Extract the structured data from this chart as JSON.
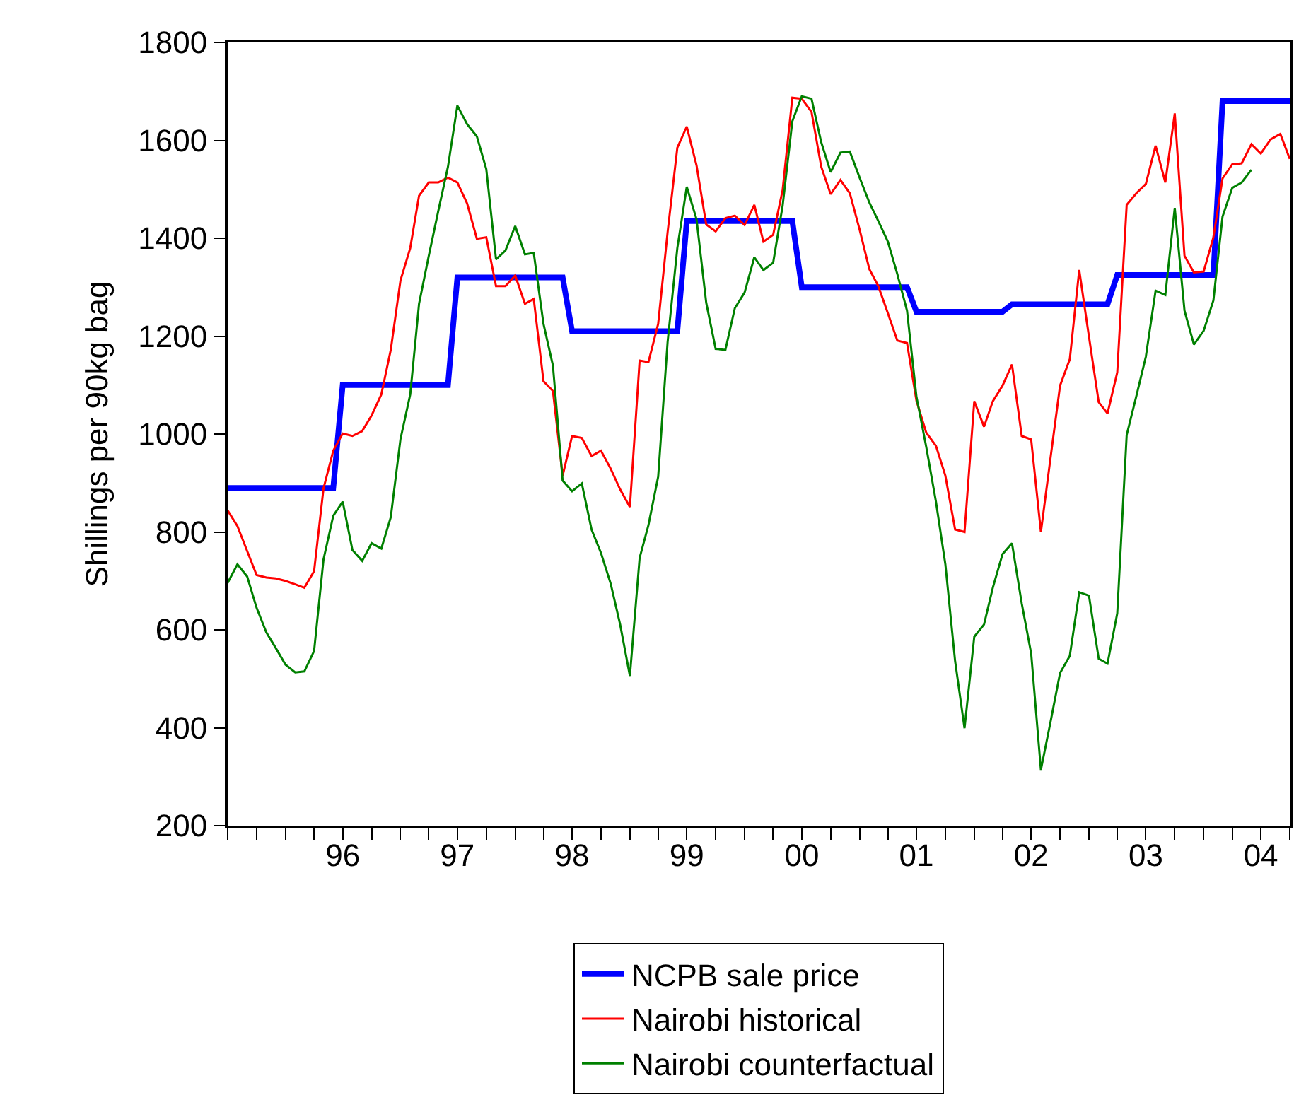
{
  "chart_data": {
    "type": "line",
    "ylabel": "Shillings per 90kg bag",
    "x": [
      "1995-07",
      "1995-08",
      "1995-09",
      "1995-10",
      "1995-11",
      "1995-12",
      "1996-01",
      "1996-02",
      "1996-03",
      "1996-04",
      "1996-05",
      "1996-06",
      "1996-07",
      "1996-08",
      "1996-09",
      "1996-10",
      "1996-11",
      "1996-12",
      "1997-01",
      "1997-02",
      "1997-03",
      "1997-04",
      "1997-05",
      "1997-06",
      "1997-07",
      "1997-08",
      "1997-09",
      "1997-10",
      "1997-11",
      "1997-12",
      "1998-01",
      "1998-02",
      "1998-03",
      "1998-04",
      "1998-05",
      "1998-06",
      "1998-07",
      "1998-08",
      "1998-09",
      "1998-10",
      "1998-11",
      "1998-12",
      "1999-01",
      "1999-02",
      "1999-03",
      "1999-04",
      "1999-05",
      "1999-06",
      "1999-07",
      "1999-08",
      "1999-09",
      "1999-10",
      "1999-11",
      "1999-12",
      "2000-01",
      "2000-02",
      "2000-03",
      "2000-04",
      "2000-05",
      "2000-06",
      "2000-07",
      "2000-08",
      "2000-09",
      "2000-10",
      "2000-11",
      "2000-12",
      "2001-01",
      "2001-02",
      "2001-03",
      "2001-04",
      "2001-05",
      "2001-06",
      "2001-07",
      "2001-08",
      "2001-09",
      "2001-10",
      "2001-11",
      "2001-12",
      "2002-01",
      "2002-02",
      "2002-03",
      "2002-04",
      "2002-05",
      "2002-06",
      "2002-07",
      "2002-08",
      "2002-09",
      "2002-10",
      "2002-11",
      "2002-12",
      "2003-01",
      "2003-02",
      "2003-03",
      "2003-04",
      "2003-05",
      "2003-06",
      "2003-07",
      "2003-08",
      "2003-09",
      "2003-10",
      "2003-11",
      "2003-12",
      "2004-01",
      "2004-02",
      "2004-03",
      "2004-04",
      "2004-05",
      "2004-06",
      "2004-07",
      "2004-08",
      "2004-09",
      "2004-10"
    ],
    "series": [
      {
        "name": "NCPB sale price",
        "color": "#0000ff",
        "values": [
          890,
          890,
          890,
          890,
          890,
          890,
          890,
          890,
          890,
          890,
          890,
          890,
          1100,
          1100,
          1100,
          1100,
          1100,
          1100,
          1100,
          1100,
          1100,
          1100,
          1100,
          1100,
          1320,
          1320,
          1320,
          1320,
          1320,
          1320,
          1320,
          1320,
          1320,
          1320,
          1320,
          1320,
          1210,
          1210,
          1210,
          1210,
          1210,
          1210,
          1210,
          1210,
          1210,
          1210,
          1210,
          1210,
          1435,
          1435,
          1435,
          1435,
          1435,
          1435,
          1435,
          1435,
          1435,
          1435,
          1435,
          1435,
          1300,
          1300,
          1300,
          1300,
          1300,
          1300,
          1300,
          1300,
          1300,
          1300,
          1300,
          1300,
          1250,
          1250,
          1250,
          1250,
          1250,
          1250,
          1250,
          1250,
          1250,
          1250,
          1265,
          1265,
          1265,
          1265,
          1265,
          1265,
          1265,
          1265,
          1265,
          1265,
          1265,
          1325,
          1325,
          1325,
          1325,
          1325,
          1325,
          1325,
          1325,
          1325,
          1325,
          1325,
          1680,
          1680,
          1680,
          1680,
          1680,
          1680,
          1680,
          1680
        ]
      },
      {
        "name": "Nairobi historical",
        "color": "#ff0000",
        "values": [
          844,
          812,
          761,
          712,
          707,
          705,
          700,
          693,
          686,
          720,
          889,
          966,
          1001,
          996,
          1006,
          1038,
          1081,
          1172,
          1314,
          1380,
          1487,
          1514,
          1514,
          1524,
          1514,
          1471,
          1399,
          1402,
          1302,
          1302,
          1324,
          1266,
          1276,
          1108,
          1088,
          915,
          996,
          992,
          955,
          966,
          929,
          887,
          851,
          1150,
          1147,
          1225,
          1412,
          1585,
          1628,
          1549,
          1428,
          1414,
          1441,
          1446,
          1427,
          1468,
          1393,
          1407,
          1498,
          1687,
          1685,
          1658,
          1546,
          1490,
          1519,
          1492,
          1418,
          1337,
          1303,
          1247,
          1191,
          1186,
          1068,
          1003,
          976,
          915,
          805,
          800,
          1067,
          1015,
          1067,
          1099,
          1142,
          996,
          989,
          800,
          953,
          1099,
          1153,
          1335,
          1199,
          1065,
          1042,
          1126,
          1468,
          1492,
          1511,
          1589,
          1514,
          1655,
          1364,
          1330,
          1332,
          1402,
          1522,
          1551,
          1553,
          1592,
          1573,
          1602,
          1613,
          1562
        ]
      },
      {
        "name": "Nairobi counterfactual",
        "color": "#008000",
        "values": [
          696,
          734,
          709,
          645,
          595,
          563,
          529,
          513,
          515,
          557,
          744,
          833,
          862,
          763,
          741,
          777,
          766,
          830,
          990,
          1081,
          1266,
          1364,
          1455,
          1546,
          1671,
          1633,
          1608,
          1541,
          1357,
          1375,
          1425,
          1367,
          1370,
          1225,
          1140,
          905,
          883,
          899,
          805,
          757,
          694,
          611,
          506,
          747,
          814,
          913,
          1188,
          1380,
          1505,
          1439,
          1268,
          1174,
          1172,
          1257,
          1289,
          1361,
          1335,
          1350,
          1466,
          1639,
          1690,
          1685,
          1596,
          1535,
          1575,
          1577,
          1524,
          1473,
          1436,
          1393,
          1327,
          1252,
          1076,
          974,
          862,
          734,
          536,
          399,
          586,
          611,
          686,
          755,
          777,
          654,
          552,
          314,
          413,
          512,
          547,
          677,
          670,
          541,
          531,
          634,
          998,
          1078,
          1158,
          1293,
          1284,
          1462,
          1252,
          1183,
          1211,
          1273,
          1444,
          1503,
          1514,
          1540,
          null,
          null,
          null,
          null
        ]
      }
    ],
    "xlim": [
      "1995-07",
      "2004-10"
    ],
    "xticks": [
      {
        "value": "1996-07",
        "label": "96"
      },
      {
        "value": "1997-07",
        "label": "97"
      },
      {
        "value": "1998-07",
        "label": "98"
      },
      {
        "value": "1999-07",
        "label": "99"
      },
      {
        "value": "2000-07",
        "label": "00"
      },
      {
        "value": "2001-07",
        "label": "01"
      },
      {
        "value": "2002-07",
        "label": "02"
      },
      {
        "value": "2003-07",
        "label": "03"
      },
      {
        "value": "2004-07",
        "label": "04"
      }
    ],
    "ylim": [
      200,
      1800
    ],
    "yticks": [
      200,
      400,
      600,
      800,
      1000,
      1200,
      1400,
      1600,
      1800
    ],
    "legend": "bottom",
    "marker": "none",
    "line_style": "solid"
  }
}
